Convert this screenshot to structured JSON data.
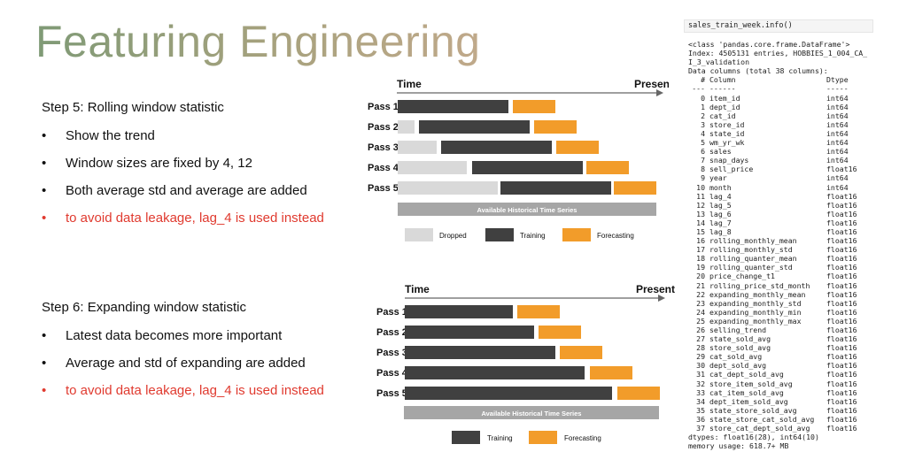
{
  "title": "Featuring Engineering",
  "step5": {
    "heading": "Step 5: Rolling window statistic",
    "bullets": [
      {
        "text": "Show the trend",
        "warn": false
      },
      {
        "text": "Window sizes are fixed by 4, 12",
        "warn": false
      },
      {
        "text": "Both average std and average are added",
        "warn": false
      },
      {
        "text": "to avoid data leakage, lag_4 is used instead",
        "warn": true
      }
    ]
  },
  "step6": {
    "heading": "Step 6: Expanding window statistic",
    "bullets": [
      {
        "text": "Latest data becomes more important",
        "warn": false
      },
      {
        "text": "Average and std of expanding are added",
        "warn": false
      },
      {
        "text": "to avoid data leakage, lag_4 is used instead",
        "warn": true
      }
    ]
  },
  "diagram_rolling": {
    "time_label": "Time",
    "present_label": "Present",
    "history_label": "Available Historical Time Series",
    "passes": [
      "Pass 1",
      "Pass 2",
      "Pass 3",
      "Pass 4",
      "Pass 5"
    ],
    "legend": {
      "dropped": "Dropped",
      "training": "Training",
      "forecasting": "Forecasting"
    }
  },
  "diagram_expanding": {
    "time_label": "Time",
    "present_label": "Present",
    "history_label": "Available Historical Time Series",
    "passes": [
      "Pass 1",
      "Pass 2",
      "Pass 3",
      "Pass 4",
      "Pass 5"
    ],
    "legend": {
      "training": "Training",
      "forecasting": "Forecasting"
    }
  },
  "colors": {
    "dropped": "#d9d9d9",
    "training": "#404040",
    "forecasting": "#f29c2a",
    "history": "#a6a6a6"
  },
  "code": {
    "command": "sales_train_week.info()",
    "header_lines": [
      "<class 'pandas.core.frame.DataFrame'>",
      "Index: 4505131 entries, HOBBIES_1_004_CA_",
      "I_3_validation",
      "Data columns (total 38 columns):"
    ],
    "col_header": {
      "num": "#",
      "name": "Column",
      "dtype": "Dtype"
    },
    "col_sep": {
      "num": "---",
      "name": "------",
      "dtype": "-----"
    },
    "columns": [
      {
        "num": "0",
        "name": "item_id",
        "dtype": "int64"
      },
      {
        "num": "1",
        "name": "dept_id",
        "dtype": "int64"
      },
      {
        "num": "2",
        "name": "cat_id",
        "dtype": "int64"
      },
      {
        "num": "3",
        "name": "store_id",
        "dtype": "int64"
      },
      {
        "num": "4",
        "name": "state_id",
        "dtype": "int64"
      },
      {
        "num": "5",
        "name": "wm_yr_wk",
        "dtype": "int64"
      },
      {
        "num": "6",
        "name": "sales",
        "dtype": "int64"
      },
      {
        "num": "7",
        "name": "snap_days",
        "dtype": "int64"
      },
      {
        "num": "8",
        "name": "sell_price",
        "dtype": "float16"
      },
      {
        "num": "9",
        "name": "year",
        "dtype": "int64"
      },
      {
        "num": "10",
        "name": "month",
        "dtype": "int64"
      },
      {
        "num": "11",
        "name": "lag_4",
        "dtype": "float16"
      },
      {
        "num": "12",
        "name": "lag_5",
        "dtype": "float16"
      },
      {
        "num": "13",
        "name": "lag_6",
        "dtype": "float16"
      },
      {
        "num": "14",
        "name": "lag_7",
        "dtype": "float16"
      },
      {
        "num": "15",
        "name": "lag_8",
        "dtype": "float16"
      },
      {
        "num": "16",
        "name": "rolling_monthly_mean",
        "dtype": "float16"
      },
      {
        "num": "17",
        "name": "rolling_monthly_std",
        "dtype": "float16"
      },
      {
        "num": "18",
        "name": "rolling_quanter_mean",
        "dtype": "float16"
      },
      {
        "num": "19",
        "name": "rolling_quanter_std",
        "dtype": "float16"
      },
      {
        "num": "20",
        "name": "price_change_t1",
        "dtype": "float16"
      },
      {
        "num": "21",
        "name": "rolling_price_std_month",
        "dtype": "float16"
      },
      {
        "num": "22",
        "name": "expanding_monthly_mean",
        "dtype": "float16"
      },
      {
        "num": "23",
        "name": "expanding_monthly_std",
        "dtype": "float16"
      },
      {
        "num": "24",
        "name": "expanding_monthly_min",
        "dtype": "float16"
      },
      {
        "num": "25",
        "name": "expanding_monthly_max",
        "dtype": "float16"
      },
      {
        "num": "26",
        "name": "selling_trend",
        "dtype": "float16"
      },
      {
        "num": "27",
        "name": "state_sold_avg",
        "dtype": "float16"
      },
      {
        "num": "28",
        "name": "store_sold_avg",
        "dtype": "float16"
      },
      {
        "num": "29",
        "name": "cat_sold_avg",
        "dtype": "float16"
      },
      {
        "num": "30",
        "name": "dept_sold_avg",
        "dtype": "float16"
      },
      {
        "num": "31",
        "name": "cat_dept_sold_avg",
        "dtype": "float16"
      },
      {
        "num": "32",
        "name": "store_item_sold_avg",
        "dtype": "float16"
      },
      {
        "num": "33",
        "name": "cat_item_sold_avg",
        "dtype": "float16"
      },
      {
        "num": "34",
        "name": "dept_item_sold_avg",
        "dtype": "float16"
      },
      {
        "num": "35",
        "name": "state_store_sold_avg",
        "dtype": "float16"
      },
      {
        "num": "36",
        "name": "state_store_cat_sold_avg",
        "dtype": "float16"
      },
      {
        "num": "37",
        "name": "store_cat_dept_sold_avg",
        "dtype": "float16"
      }
    ],
    "footer_lines": [
      "dtypes: float16(28), int64(10)",
      "memory usage: 618.7+ MB"
    ]
  }
}
